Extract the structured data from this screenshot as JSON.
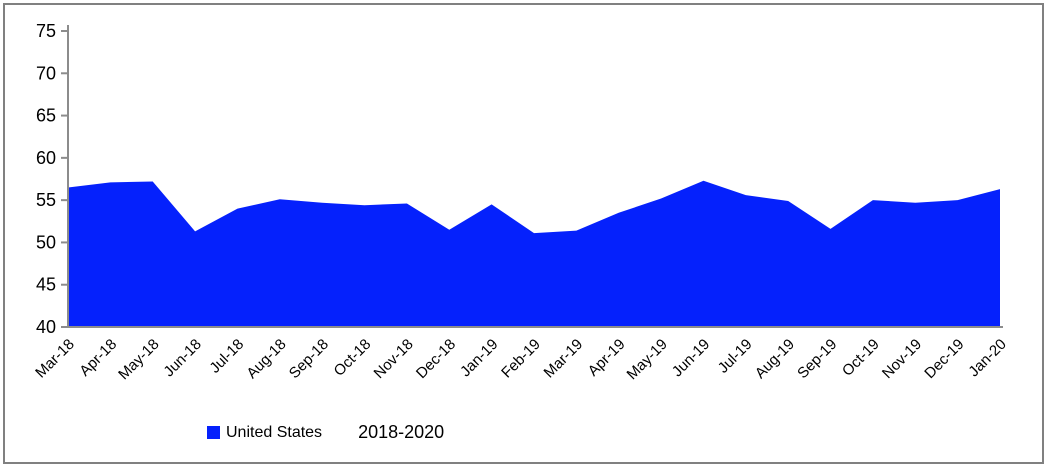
{
  "window": {
    "background": "#ffffff",
    "border_color": "#808080"
  },
  "chart_data": {
    "type": "area",
    "title": "",
    "xlabel": "",
    "ylabel": "",
    "categories": [
      "Mar-18",
      "Apr-18",
      "May-18",
      "Jun-18",
      "Jul-18",
      "Aug-18",
      "Sep-18",
      "Oct-18",
      "Nov-18",
      "Dec-18",
      "Jan-19",
      "Feb-19",
      "Mar-19",
      "Apr-19",
      "May-19",
      "Jun-19",
      "Jul-19",
      "Aug-19",
      "Sep-19",
      "Oct-19",
      "Nov-19",
      "Dec-19",
      "Jan-20"
    ],
    "series": [
      {
        "name": "United States",
        "color": "#0521FC",
        "values": [
          56.5,
          57.1,
          57.2,
          51.3,
          54.0,
          55.1,
          54.7,
          54.4,
          54.6,
          51.5,
          54.5,
          51.1,
          51.4,
          53.5,
          55.2,
          57.3,
          55.6,
          54.9,
          51.6,
          55.0,
          54.7,
          55.0,
          56.3
        ]
      }
    ],
    "ylim": [
      40,
      75
    ],
    "yticks": [
      40,
      45,
      50,
      55,
      60,
      65,
      70,
      75
    ],
    "x_label_rotation_deg": 45,
    "grid": false,
    "axis_color": "#8C8C8C",
    "tick_label_color": "#000000",
    "legend_position": "bottom"
  },
  "legend": {
    "series_label": "United States",
    "range_label": "2018-2020",
    "swatch_color": "#0521FC"
  }
}
